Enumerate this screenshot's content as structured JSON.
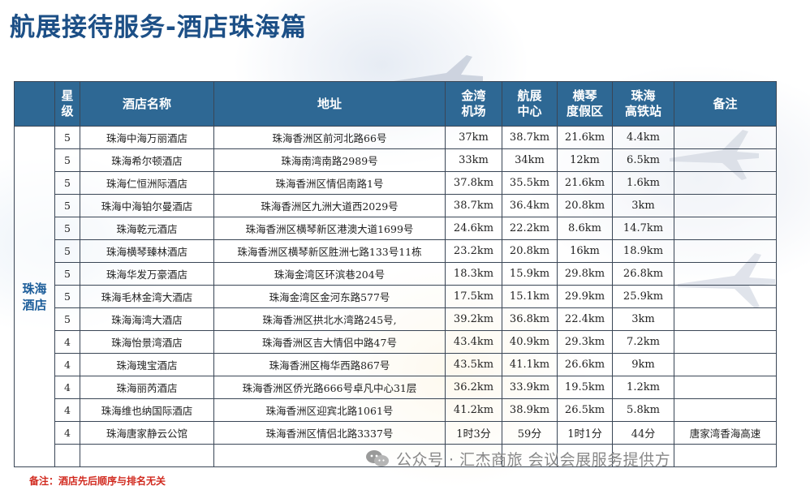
{
  "title": "航展接待服务-酒店珠海篇",
  "table": {
    "headers": {
      "group": "",
      "star": "星\n级",
      "name": "酒店名称",
      "address": "地址",
      "jinwan": "金湾\n机场",
      "airshow": "航展\n中心",
      "hengqin": "横琴\n度假区",
      "hsr": "珠海\n高铁站",
      "remark": "备注"
    },
    "group_label": "珠海\n酒店",
    "rows": [
      {
        "star": "5",
        "name": "珠海中海万丽酒店",
        "address": "珠海香洲区前河北路66号",
        "jinwan": "37km",
        "airshow": "38.7km",
        "hengqin": "21.6km",
        "hsr": "4.4km",
        "remark": ""
      },
      {
        "star": "5",
        "name": "珠海希尔顿酒店",
        "address": "珠海南湾南路2989号",
        "jinwan": "33km",
        "airshow": "34km",
        "hengqin": "12km",
        "hsr": "6.5km",
        "remark": ""
      },
      {
        "star": "5",
        "name": "珠海仁恒洲际酒店",
        "address": "珠海香洲区情侣南路1号",
        "jinwan": "37.8km",
        "airshow": "35.5km",
        "hengqin": "21.6km",
        "hsr": "1.6km",
        "remark": ""
      },
      {
        "star": "5",
        "name": "珠海中海铂尔曼酒店",
        "address": "珠海香洲区九洲大道西2029号",
        "jinwan": "38.7km",
        "airshow": "36.4km",
        "hengqin": "20.8km",
        "hsr": "3km",
        "remark": ""
      },
      {
        "star": "5",
        "name": "珠海乾元酒店",
        "address": "珠海香洲区横琴新区港澳大道1699号",
        "jinwan": "24.6km",
        "airshow": "22.2km",
        "hengqin": "8.6km",
        "hsr": "14.7km",
        "remark": ""
      },
      {
        "star": "5",
        "name": "珠海横琴臻林酒店",
        "address": "珠海香洲区横琴新区胜洲七路133号11栋",
        "jinwan": "23.2km",
        "airshow": "20.8km",
        "hengqin": "16km",
        "hsr": "18.9km",
        "remark": ""
      },
      {
        "star": "5",
        "name": "珠海华发万豪酒店",
        "address": "珠海金湾区环滨巷204号",
        "jinwan": "18.3km",
        "airshow": "15.9km",
        "hengqin": "29.8km",
        "hsr": "26.8km",
        "remark": ""
      },
      {
        "star": "5",
        "name": "珠海毛林金湾大酒店",
        "address": "珠海金湾区金河东路577号",
        "jinwan": "17.5km",
        "airshow": "15.1km",
        "hengqin": "29.9km",
        "hsr": "25.9km",
        "remark": ""
      },
      {
        "star": "5",
        "name": "珠海海湾大酒店",
        "address": "珠海香洲区拱北水湾路245号,",
        "jinwan": "39.2km",
        "airshow": "36.8km",
        "hengqin": "22.4km",
        "hsr": "3km",
        "remark": ""
      },
      {
        "star": "4",
        "name": "珠海怡景湾酒店",
        "address": "珠海香洲区吉大情侣中路47号",
        "jinwan": "43.4km",
        "airshow": "40.9km",
        "hengqin": "29.3km",
        "hsr": "7.2km",
        "remark": ""
      },
      {
        "star": "4",
        "name": "珠海瑰宝酒店",
        "address": "珠海香洲区梅华西路867号",
        "jinwan": "43.5km",
        "airshow": "41.1km",
        "hengqin": "26.6km",
        "hsr": "9km",
        "remark": ""
      },
      {
        "star": "4",
        "name": "珠海丽芮酒店",
        "address": "珠海香洲区侨光路666号卓凡中心31层",
        "jinwan": "36.2km",
        "airshow": "33.9km",
        "hengqin": "19.5km",
        "hsr": "1.2km",
        "remark": ""
      },
      {
        "star": "4",
        "name": "珠海维也纳国际酒店",
        "address": "珠海香洲区迎宾北路1061号",
        "jinwan": "41.2km",
        "airshow": "38.9km",
        "hengqin": "26.5km",
        "hsr": "5.8km",
        "remark": ""
      },
      {
        "star": "4",
        "name": "珠海唐家静云公馆",
        "address": "珠海香洲区情侣北路3337号",
        "jinwan": "1时3分",
        "airshow": "59分",
        "hengqin": "1时1分",
        "hsr": "44分",
        "remark": "唐家湾香海高速"
      },
      {
        "star": "",
        "name": "",
        "address": "",
        "jinwan": "",
        "airshow": "",
        "hengqin": "",
        "hsr": "",
        "remark": ""
      }
    ]
  },
  "footnote": "备注：酒店先后顺序与排名无关",
  "watermark": {
    "text": "公众号 · 汇杰商旅 会议会展服务提供方",
    "icon": "wechat-icon"
  },
  "colors": {
    "title": "#1c4f86",
    "header_bg": "#2e6894",
    "group_label": "#1c5d9a",
    "footnote": "#d12a1f"
  }
}
